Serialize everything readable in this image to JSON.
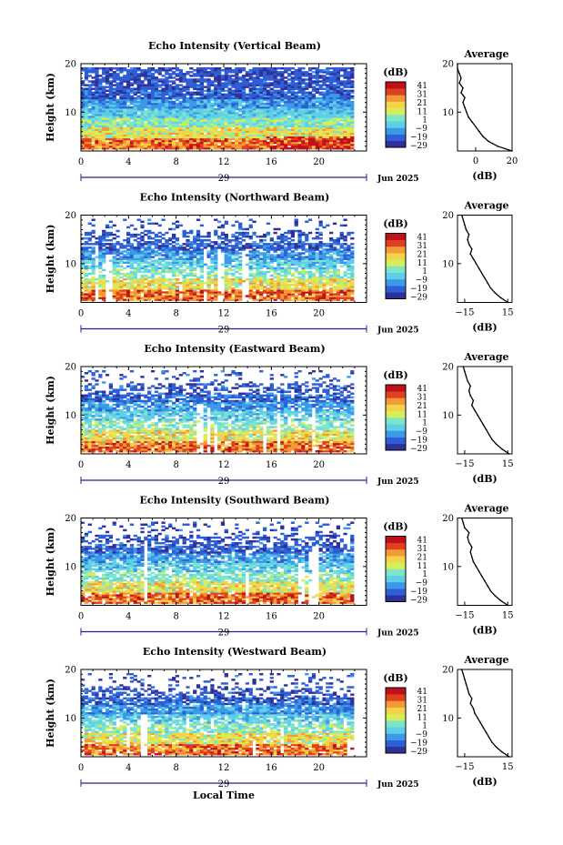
{
  "figure": {
    "xlabel": "Local Time",
    "legend_unit": "(dB)",
    "legend_ticks": [
      "41",
      "31",
      "21",
      "11",
      "1",
      "−9",
      "−19",
      "−29"
    ],
    "colormap": [
      "#30309a",
      "#2f5fd6",
      "#3b9ae8",
      "#5fcfe8",
      "#7ee6c8",
      "#d6ee5a",
      "#f4d24a",
      "#f29a36",
      "#e0401f",
      "#c0101a"
    ],
    "date_label": "Jun 2025",
    "day_label": "29",
    "avg_title": "Average",
    "avg_xlabel": "(dB)"
  },
  "chart_data": [
    {
      "type": "heatmap",
      "title": "Echo Intensity (Vertical Beam)",
      "ylabel": "Height (km)",
      "xlim": [
        0,
        24
      ],
      "ylim": [
        2,
        20
      ],
      "x_ticks": [
        "0",
        "4",
        "8",
        "12",
        "16",
        "20"
      ],
      "y_ticks": [
        "20",
        "10"
      ],
      "colorbar": {
        "label": "(dB)",
        "range": [
          -29,
          41
        ],
        "ticks": [
          "41",
          "31",
          "21",
          "11",
          "1",
          "−9",
          "−19",
          "−29"
        ]
      },
      "date": "Jun 2025",
      "day": "29",
      "average_profile": {
        "title": "Average",
        "xlabel": "(dB)",
        "xlim": [
          -10,
          20
        ],
        "x_ticks": [
          "0",
          "20"
        ],
        "y_ticks": [
          "20",
          "10"
        ],
        "height_km": [
          2,
          3,
          4,
          5,
          6,
          7,
          8,
          9,
          10,
          11,
          12,
          13,
          14,
          15,
          16,
          17,
          18,
          19,
          20
        ],
        "values_db": [
          20,
          12,
          7,
          4,
          2,
          0,
          -2,
          -4,
          -5,
          -6,
          -7,
          -6,
          -8,
          -7,
          -9,
          -8,
          -9,
          -10,
          -10
        ]
      }
    },
    {
      "type": "heatmap",
      "title": "Echo Intensity (Northward Beam)",
      "ylabel": "Height (km)",
      "xlim": [
        0,
        24
      ],
      "ylim": [
        2,
        20
      ],
      "x_ticks": [
        "0",
        "4",
        "8",
        "12",
        "16",
        "20"
      ],
      "y_ticks": [
        "20",
        "10"
      ],
      "colorbar": {
        "label": "(dB)",
        "range": [
          -29,
          41
        ],
        "ticks": [
          "41",
          "31",
          "21",
          "11",
          "1",
          "−9",
          "−19",
          "−29"
        ]
      },
      "date": "Jun 2025",
      "day": "29",
      "average_profile": {
        "title": "Average",
        "xlabel": "(dB)",
        "xlim": [
          -20,
          18
        ],
        "x_ticks": [
          "−15",
          "15"
        ],
        "y_ticks": [
          "20",
          "10"
        ],
        "height_km": [
          2,
          3,
          4,
          5,
          6,
          7,
          8,
          9,
          10,
          11,
          12,
          13,
          14,
          15,
          16,
          17,
          18,
          19,
          20
        ],
        "values_db": [
          15,
          10,
          6,
          3,
          1,
          -1,
          -3,
          -5,
          -7,
          -9,
          -11,
          -10,
          -12,
          -13,
          -12,
          -14,
          -15,
          -16,
          -17
        ]
      }
    },
    {
      "type": "heatmap",
      "title": "Echo Intensity (Eastward Beam)",
      "ylabel": "Height (km)",
      "xlim": [
        0,
        24
      ],
      "ylim": [
        2,
        20
      ],
      "x_ticks": [
        "0",
        "4",
        "8",
        "12",
        "16",
        "20"
      ],
      "y_ticks": [
        "20",
        "10"
      ],
      "colorbar": {
        "label": "(dB)",
        "range": [
          -29,
          41
        ],
        "ticks": [
          "41",
          "31",
          "21",
          "11",
          "1",
          "−9",
          "−19",
          "−29"
        ]
      },
      "date": "Jun 2025",
      "day": "29",
      "average_profile": {
        "title": "Average",
        "xlabel": "(dB)",
        "xlim": [
          -20,
          18
        ],
        "x_ticks": [
          "−15",
          "15"
        ],
        "y_ticks": [
          "20",
          "10"
        ],
        "height_km": [
          2,
          3,
          4,
          5,
          6,
          7,
          8,
          9,
          10,
          11,
          12,
          13,
          14,
          15,
          16,
          17,
          18,
          19,
          20
        ],
        "values_db": [
          16,
          11,
          7,
          4,
          2,
          0,
          -2,
          -4,
          -6,
          -8,
          -10,
          -9,
          -11,
          -12,
          -11,
          -13,
          -14,
          -15,
          -16
        ]
      }
    },
    {
      "type": "heatmap",
      "title": "Echo Intensity (Southward Beam)",
      "ylabel": "Height (km)",
      "xlim": [
        0,
        24
      ],
      "ylim": [
        2,
        20
      ],
      "x_ticks": [
        "0",
        "4",
        "8",
        "12",
        "16",
        "20"
      ],
      "y_ticks": [
        "20",
        "10"
      ],
      "colorbar": {
        "label": "(dB)",
        "range": [
          -29,
          41
        ],
        "ticks": [
          "41",
          "31",
          "21",
          "11",
          "1",
          "−9",
          "−19",
          "−29"
        ]
      },
      "date": "Jun 2025",
      "day": "29",
      "average_profile": {
        "title": "Average",
        "xlabel": "(dB)",
        "xlim": [
          -20,
          18
        ],
        "x_ticks": [
          "−15",
          "15"
        ],
        "y_ticks": [
          "20",
          "10"
        ],
        "height_km": [
          2,
          3,
          4,
          5,
          6,
          7,
          8,
          9,
          10,
          11,
          12,
          13,
          14,
          15,
          16,
          17,
          18,
          19,
          20
        ],
        "values_db": [
          15,
          10,
          6,
          3,
          1,
          -1,
          -3,
          -5,
          -7,
          -9,
          -10,
          -11,
          -10,
          -12,
          -13,
          -12,
          -15,
          -16,
          -17
        ]
      }
    },
    {
      "type": "heatmap",
      "title": "Echo Intensity (Westward Beam)",
      "ylabel": "Height (km)",
      "xlabel": "Local Time",
      "xlim": [
        0,
        24
      ],
      "ylim": [
        2,
        20
      ],
      "x_ticks": [
        "0",
        "4",
        "8",
        "12",
        "16",
        "20"
      ],
      "y_ticks": [
        "20",
        "10"
      ],
      "colorbar": {
        "label": "(dB)",
        "range": [
          -29,
          41
        ],
        "ticks": [
          "41",
          "31",
          "21",
          "11",
          "1",
          "−9",
          "−19",
          "−29"
        ]
      },
      "date": "Jun 2025",
      "day": "29",
      "average_profile": {
        "title": "Average",
        "xlabel": "(dB)",
        "xlim": [
          -20,
          18
        ],
        "x_ticks": [
          "−15",
          "15"
        ],
        "y_ticks": [
          "20",
          "10"
        ],
        "height_km": [
          2,
          3,
          4,
          5,
          6,
          7,
          8,
          9,
          10,
          11,
          12,
          13,
          14,
          15,
          16,
          17,
          18,
          19,
          20
        ],
        "values_db": [
          16,
          11,
          7,
          4,
          2,
          0,
          -2,
          -4,
          -6,
          -8,
          -9,
          -11,
          -10,
          -12,
          -13,
          -14,
          -15,
          -16,
          -17
        ]
      }
    }
  ]
}
